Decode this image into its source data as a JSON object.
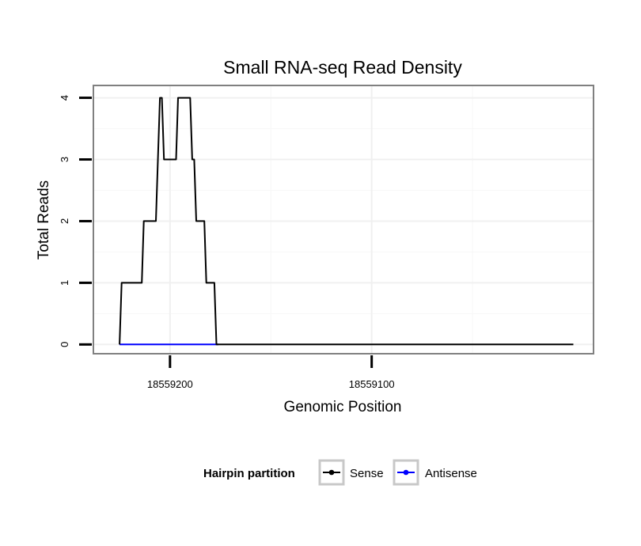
{
  "chart_data": {
    "type": "line",
    "title": "Small RNA-seq Read Density",
    "xlabel": "Genomic Position",
    "ylabel": "Total Reads",
    "x_reversed": true,
    "xlim": [
      18559238,
      18558990
    ],
    "ylim": [
      -0.15,
      4.2
    ],
    "x_ticks": [
      18559200,
      18559100
    ],
    "x_tick_labels": [
      "18559200",
      "18559100"
    ],
    "x_minor_ticks": [
      18559150,
      18559050
    ],
    "y_ticks": [
      0,
      1,
      2,
      3,
      4
    ],
    "y_tick_labels": [
      "0",
      "1",
      "2",
      "3",
      "4"
    ],
    "y_minor_ticks": [
      0.5,
      1.5,
      2.5,
      3.5
    ],
    "grid": true,
    "legend": {
      "title": "Hairpin partition",
      "position": "bottom",
      "entries": [
        {
          "name": "Sense",
          "color": "#000000"
        },
        {
          "name": "Antisense",
          "color": "#0000ff"
        }
      ]
    },
    "series": [
      {
        "name": "Sense",
        "color": "#000000",
        "x": [
          18559225,
          18559224,
          18559214,
          18559213,
          18559207,
          18559205,
          18559204,
          18559203,
          18559197,
          18559196,
          18559190,
          18559189,
          18559188,
          18559187,
          18559183,
          18559182,
          18559178,
          18559177,
          18559176,
          18559176,
          18559000
        ],
        "y": [
          0,
          1,
          1,
          2,
          2,
          4,
          4,
          3,
          3,
          4,
          4,
          3,
          3,
          2,
          2,
          1,
          1,
          0,
          0,
          0,
          0
        ]
      },
      {
        "name": "Antisense",
        "color": "#0000ff",
        "x": [
          18559225,
          18559176
        ],
        "y": [
          0,
          0
        ]
      }
    ]
  }
}
